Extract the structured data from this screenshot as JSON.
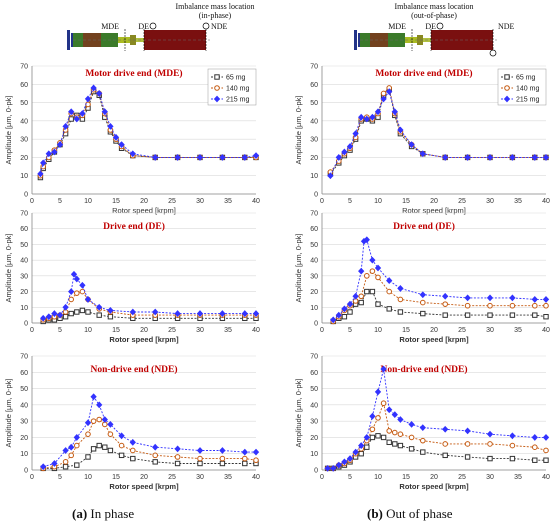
{
  "captions": {
    "a_letter": "(a)",
    "a_text": " In phase",
    "b_letter": "(b)",
    "b_text": " Out of phase"
  },
  "schematics": [
    {
      "title_line1": "Imbalance mass location",
      "title_line2": "(in-phase)",
      "label_mde": "MDE",
      "label_de": "DE",
      "label_nde": "NDE"
    },
    {
      "title_line1": "Imbalance mass location",
      "title_line2": "(out-of-phase)",
      "label_mde": "MDE",
      "label_de": "DE",
      "label_nde": "NDE"
    }
  ],
  "colors": {
    "65 mg": "#333333",
    "140 mg": "#c55a11",
    "215 mg": "#3333ff"
  },
  "chart_data": [
    {
      "id": "a-mde",
      "type": "line",
      "title": "Motor drive end (MDE)",
      "xlabel": "Rotor speed [krpm]",
      "ylabel": "Amplitude [μm, 0-pk]",
      "xlim": [
        0,
        40
      ],
      "ylim": [
        0,
        70
      ],
      "xticks": [
        0,
        5,
        10,
        15,
        20,
        25,
        30,
        35,
        40
      ],
      "yticks": [
        0,
        10,
        20,
        30,
        40,
        50,
        60,
        70
      ],
      "legend": "top-right",
      "series": [
        {
          "name": "65 mg",
          "x": [
            1.5,
            2,
            3,
            4,
            5,
            6,
            7,
            8,
            9,
            10,
            11,
            12,
            13,
            14,
            15,
            16,
            18,
            22,
            26,
            30,
            34,
            38,
            40
          ],
          "y": [
            9,
            14,
            19,
            23,
            27,
            33,
            41,
            43,
            41,
            47,
            56,
            54,
            42,
            34,
            29,
            25,
            21,
            20,
            20,
            20,
            20,
            20,
            20
          ]
        },
        {
          "name": "140 mg",
          "x": [
            1.5,
            2,
            3,
            4,
            5,
            6,
            7,
            8,
            9,
            10,
            11,
            12,
            13,
            14,
            15,
            16,
            18,
            22,
            26,
            30,
            34,
            38,
            40
          ],
          "y": [
            10,
            15,
            20,
            24,
            28,
            35,
            44,
            42,
            43,
            49,
            57,
            55,
            44,
            35,
            30,
            26,
            21,
            20,
            20,
            20,
            20,
            20,
            20
          ]
        },
        {
          "name": "215 mg",
          "x": [
            1.5,
            2,
            3,
            4,
            5,
            6,
            7,
            8,
            9,
            10,
            11,
            12,
            13,
            14,
            15,
            16,
            18,
            22,
            26,
            30,
            34,
            38,
            40
          ],
          "y": [
            11,
            17,
            22,
            23,
            27,
            37,
            45,
            41,
            44,
            52,
            58,
            55,
            45,
            37,
            31,
            27,
            22,
            20,
            20,
            20,
            20,
            20,
            21
          ]
        }
      ]
    },
    {
      "id": "b-mde",
      "type": "line",
      "title": "Motor drive end (MDE)",
      "xlabel": "Rotor speed [krpm]",
      "ylabel": "Amplitude [μm, 0-pk]",
      "xlim": [
        0,
        40
      ],
      "ylim": [
        0,
        70
      ],
      "xticks": [
        0,
        5,
        10,
        15,
        20,
        25,
        30,
        35,
        40
      ],
      "yticks": [
        0,
        10,
        20,
        30,
        40,
        50,
        60,
        70
      ],
      "legend": "top-right",
      "series": [
        {
          "name": "65 mg",
          "x": [
            1.5,
            3,
            4,
            5,
            6,
            7,
            8,
            9,
            10,
            11,
            12,
            13,
            14,
            16,
            18,
            22,
            26,
            30,
            34,
            38,
            40
          ],
          "y": [
            11,
            17,
            21,
            24,
            30,
            40,
            41,
            40,
            42,
            54,
            57,
            43,
            33,
            26,
            22,
            20,
            20,
            20,
            20,
            20,
            20
          ]
        },
        {
          "name": "140 mg",
          "x": [
            1.5,
            3,
            4,
            5,
            6,
            7,
            8,
            9,
            10,
            11,
            12,
            13,
            14,
            16,
            18,
            22,
            26,
            30,
            34,
            38,
            40
          ],
          "y": [
            12,
            18,
            22,
            25,
            31,
            41,
            42,
            41,
            44,
            55,
            58,
            44,
            34,
            27,
            22,
            20,
            20,
            20,
            20,
            20,
            20
          ]
        },
        {
          "name": "215 mg",
          "x": [
            1.5,
            3,
            4,
            5,
            6,
            7,
            8,
            9,
            10,
            11,
            12,
            13,
            14,
            16,
            18,
            22,
            26,
            30,
            34,
            38,
            40
          ],
          "y": [
            10,
            20,
            23,
            26,
            33,
            42,
            41,
            42,
            45,
            52,
            56,
            45,
            35,
            27,
            22,
            20,
            20,
            20,
            20,
            20,
            20
          ]
        }
      ]
    },
    {
      "id": "a-de",
      "type": "line",
      "title": "Drive end (DE)",
      "xlabel": "Rotor speed [krpm]",
      "ylabel": "Amplitude [μm, 0-pk]",
      "xlim": [
        0,
        40
      ],
      "ylim": [
        0,
        70
      ],
      "xticks": [
        0,
        5,
        10,
        15,
        20,
        25,
        30,
        35,
        40
      ],
      "yticks": [
        0,
        10,
        20,
        30,
        40,
        50,
        60,
        70
      ],
      "series": [
        {
          "name": "65 mg",
          "x": [
            2,
            3,
            4,
            5,
            6,
            7,
            8,
            9,
            10,
            12,
            14,
            18,
            22,
            26,
            30,
            34,
            38,
            40
          ],
          "y": [
            1,
            2,
            2,
            3,
            4,
            6,
            7,
            8,
            7,
            5,
            4,
            3,
            3,
            3,
            3,
            3,
            3,
            3
          ]
        },
        {
          "name": "140 mg",
          "x": [
            2,
            3,
            4,
            5,
            6,
            7,
            8,
            9,
            10,
            12,
            14,
            18,
            22,
            26,
            30,
            34,
            38,
            40
          ],
          "y": [
            2,
            3,
            4,
            5,
            7,
            15,
            19,
            20,
            15,
            9,
            7,
            5,
            5,
            5,
            5,
            5,
            5,
            5
          ]
        },
        {
          "name": "215 mg",
          "x": [
            2,
            3,
            4,
            5,
            6,
            7,
            7.5,
            8,
            9,
            10,
            12,
            14,
            18,
            22,
            26,
            30,
            34,
            38,
            40
          ],
          "y": [
            3,
            4,
            6,
            5,
            10,
            20,
            31,
            28,
            24,
            15,
            10,
            8,
            7,
            7,
            6,
            6,
            6,
            6,
            6
          ]
        }
      ]
    },
    {
      "id": "b-de",
      "type": "line",
      "title": "Drive end (DE)",
      "xlabel": "Rotor speed [krpm]",
      "ylabel": "Amplitude [μm, 0-pk]",
      "xlim": [
        0,
        40
      ],
      "ylim": [
        0,
        70
      ],
      "xticks": [
        0,
        5,
        10,
        15,
        20,
        25,
        30,
        35,
        40
      ],
      "yticks": [
        0,
        10,
        20,
        30,
        40,
        50,
        60,
        70
      ],
      "series": [
        {
          "name": "65 mg",
          "x": [
            2,
            3,
            4,
            5,
            6,
            7,
            8,
            9,
            10,
            12,
            14,
            18,
            22,
            26,
            30,
            34,
            38,
            40
          ],
          "y": [
            1,
            3,
            4,
            7,
            12,
            13,
            20,
            20,
            12,
            9,
            7,
            6,
            5,
            5,
            5,
            5,
            5,
            4
          ]
        },
        {
          "name": "140 mg",
          "x": [
            2,
            3,
            4,
            5,
            6,
            7,
            8,
            9,
            10,
            12,
            14,
            18,
            22,
            26,
            30,
            34,
            38,
            40
          ],
          "y": [
            1,
            4,
            8,
            11,
            14,
            17,
            30,
            33,
            29,
            20,
            15,
            13,
            12,
            11,
            11,
            11,
            11,
            11
          ]
        },
        {
          "name": "215 mg",
          "x": [
            2,
            3,
            4,
            5,
            6,
            7,
            7.5,
            8,
            9,
            10,
            12,
            14,
            18,
            22,
            26,
            30,
            34,
            38,
            40
          ],
          "y": [
            2,
            5,
            9,
            12,
            17,
            33,
            52,
            53,
            40,
            35,
            27,
            22,
            18,
            17,
            16,
            16,
            16,
            15,
            15
          ]
        }
      ]
    },
    {
      "id": "a-nde",
      "type": "line",
      "title": "Non-drive end (NDE)",
      "xlabel": "Rotor speed [krpm]",
      "ylabel": "Amplitude [μm, 0-pk]",
      "xlim": [
        0,
        40
      ],
      "ylim": [
        0,
        70
      ],
      "xticks": [
        0,
        5,
        10,
        15,
        20,
        25,
        30,
        35,
        40
      ],
      "yticks": [
        0,
        10,
        20,
        30,
        40,
        50,
        60,
        70
      ],
      "series": [
        {
          "name": "65 mg",
          "x": [
            2,
            4,
            6,
            8,
            10,
            11,
            12,
            13,
            14,
            16,
            18,
            22,
            26,
            30,
            34,
            38,
            40
          ],
          "y": [
            1,
            1,
            2,
            3,
            8,
            13,
            15,
            14,
            12,
            9,
            7,
            5,
            4,
            4,
            4,
            4,
            4
          ]
        },
        {
          "name": "140 mg",
          "x": [
            2,
            4,
            6,
            7,
            8,
            10,
            11,
            12,
            13,
            14,
            16,
            18,
            22,
            26,
            30,
            34,
            38,
            40
          ],
          "y": [
            1,
            2,
            5,
            9,
            15,
            22,
            30,
            31,
            28,
            22,
            15,
            12,
            9,
            8,
            7,
            7,
            7,
            6
          ]
        },
        {
          "name": "215 mg",
          "x": [
            2,
            4,
            6,
            7,
            8,
            10,
            11,
            12,
            13,
            14,
            16,
            18,
            22,
            26,
            30,
            34,
            38,
            40
          ],
          "y": [
            2,
            4,
            12,
            14,
            20,
            29,
            45,
            40,
            31,
            28,
            21,
            17,
            14,
            13,
            12,
            12,
            11,
            11
          ]
        }
      ]
    },
    {
      "id": "b-nde",
      "type": "line",
      "title": "Non-drive end (NDE)",
      "xlabel": "Rotor speed [krpm]",
      "ylabel": "Amplitude [μm, 0-pk]",
      "xlim": [
        0,
        40
      ],
      "ylim": [
        0,
        70
      ],
      "xticks": [
        0,
        5,
        10,
        15,
        20,
        25,
        30,
        35,
        40
      ],
      "yticks": [
        0,
        10,
        20,
        30,
        40,
        50,
        60,
        70
      ],
      "series": [
        {
          "name": "65 mg",
          "x": [
            1,
            2,
            3,
            4,
            5,
            6,
            7,
            8,
            9,
            10,
            11,
            12,
            13,
            14,
            16,
            18,
            22,
            26,
            30,
            34,
            38,
            40
          ],
          "y": [
            1,
            1,
            2,
            3,
            5,
            8,
            10,
            14,
            20,
            21,
            20,
            17,
            16,
            15,
            13,
            11,
            9,
            8,
            7,
            7,
            6,
            6
          ]
        },
        {
          "name": "140 mg",
          "x": [
            1,
            2,
            3,
            4,
            5,
            6,
            7,
            8,
            9,
            10,
            11,
            12,
            13,
            14,
            16,
            18,
            22,
            26,
            30,
            34,
            38,
            40
          ],
          "y": [
            1,
            1,
            3,
            4,
            6,
            10,
            13,
            18,
            25,
            32,
            41,
            24,
            23,
            22,
            20,
            18,
            16,
            16,
            16,
            15,
            14,
            12
          ]
        },
        {
          "name": "215 mg",
          "x": [
            1,
            2,
            3,
            4,
            5,
            6,
            7,
            8,
            9,
            10,
            11,
            12,
            13,
            14,
            16,
            18,
            22,
            26,
            30,
            34,
            38,
            40
          ],
          "y": [
            1,
            1,
            3,
            5,
            7,
            11,
            15,
            20,
            33,
            48,
            62,
            37,
            34,
            31,
            28,
            26,
            25,
            24,
            22,
            21,
            20,
            20
          ]
        }
      ]
    }
  ]
}
